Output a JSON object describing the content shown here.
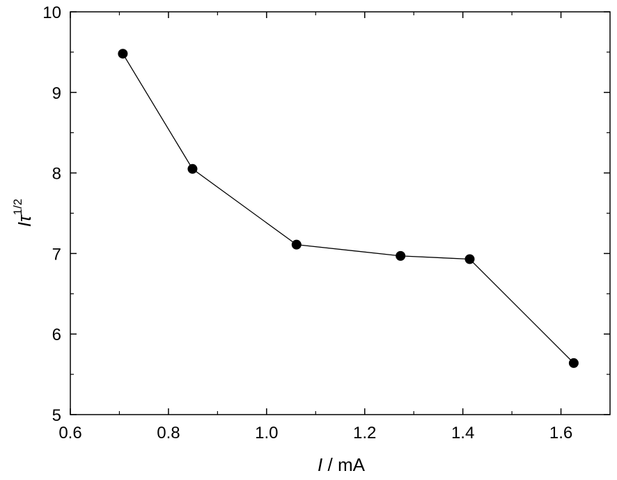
{
  "chart_data": {
    "type": "line",
    "x": [
      0.707,
      0.849,
      1.061,
      1.273,
      1.414,
      1.626
    ],
    "series": [
      {
        "values": [
          9.48,
          8.05,
          7.11,
          6.97,
          6.93,
          5.64
        ]
      }
    ],
    "xlabel": {
      "main": "I",
      "unit": " / mA"
    },
    "ylabel": {
      "main": "I",
      "sym": "τ",
      "exp": "1/2"
    },
    "xlim": [
      0.6,
      1.7
    ],
    "ylim": [
      5,
      10
    ],
    "xticks": [
      "0.6",
      "0.8",
      "1.0",
      "1.2",
      "1.4",
      "1.6"
    ],
    "yticks": [
      "5",
      "6",
      "7",
      "8",
      "9",
      "10"
    ],
    "grid": false,
    "line_color": "#000000",
    "marker_color": "#000000"
  }
}
